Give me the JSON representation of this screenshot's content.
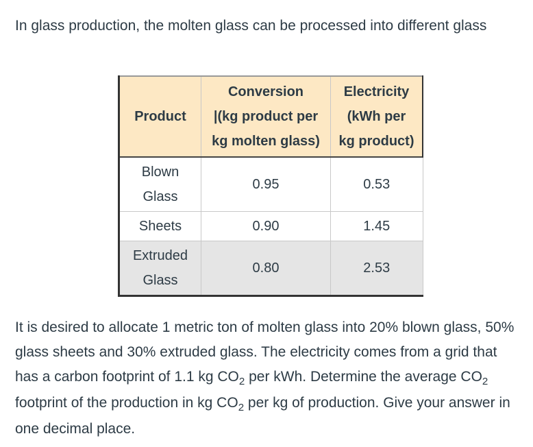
{
  "intro_text": "In glass production, the molten glass can be processed into different glass",
  "table": {
    "headers": {
      "product": "Product",
      "conversion_line1": "Conversion",
      "conversion_line2": "|(kg product per",
      "conversion_line3": "kg molten glass)",
      "electricity_line1": "Electricity",
      "electricity_line2": "(kWh per",
      "electricity_line3": "kg product)"
    },
    "rows": [
      {
        "product_line1": "Blown",
        "product_line2": "Glass",
        "conversion": "0.95",
        "electricity": "0.53"
      },
      {
        "product_line1": "Sheets",
        "product_line2": "",
        "conversion": "0.90",
        "electricity": "1.45"
      },
      {
        "product_line1": "Extruded",
        "product_line2": "Glass",
        "conversion": "0.80",
        "electricity": "2.53"
      }
    ],
    "shading_color": "#e5e5e5",
    "header_color": "#fde8c4"
  },
  "question": {
    "part1": "It is desired to allocate  1 metric ton of molten glass into 20% blown glass, 50% glass sheets and 30% extruded glass. The electricity comes from a grid that has a carbon footprint of 1.1 kg CO",
    "sub1": "2",
    "part2": " per kWh. Determine the average CO",
    "sub2": "2",
    "part3": " footprint of the production in kg CO",
    "sub3": "2",
    "part4": " per kg of production. Give your answer in one decimal place."
  }
}
